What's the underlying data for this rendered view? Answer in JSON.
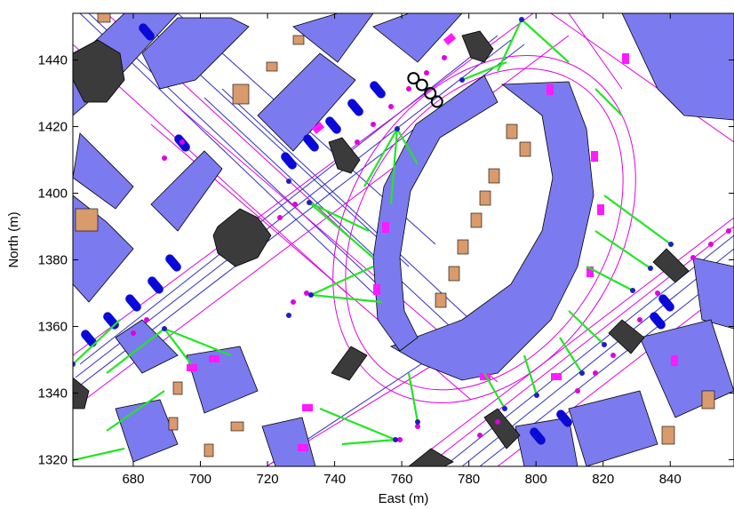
{
  "chart_data": {
    "type": "scatter",
    "title": "",
    "xlabel": "East (m)",
    "ylabel": "North (m)",
    "xlim": [
      662,
      859
    ],
    "ylim": [
      1318,
      1454
    ],
    "xticks": [
      680,
      700,
      720,
      740,
      760,
      780,
      800,
      820,
      840
    ],
    "yticks": [
      1320,
      1340,
      1360,
      1380,
      1400,
      1420,
      1440
    ],
    "grid": false,
    "colors": {
      "building": "#7b7bef",
      "small_structure": "#d99a6c",
      "dark_block": "#3b3b3b",
      "road_line": "#2f2fc8",
      "path_line": "#e000e0",
      "connection": "#22e622",
      "node": "#1f1fbf",
      "highlight_marker": "#000000"
    },
    "series": [
      {
        "name": "",
        "marker": "circle-outline",
        "points": [
          [
            763.5,
            1434.5
          ],
          [
            766,
            1432.5
          ],
          [
            768.5,
            1430
          ],
          [
            770.5,
            1427.5
          ]
        ]
      }
    ]
  }
}
